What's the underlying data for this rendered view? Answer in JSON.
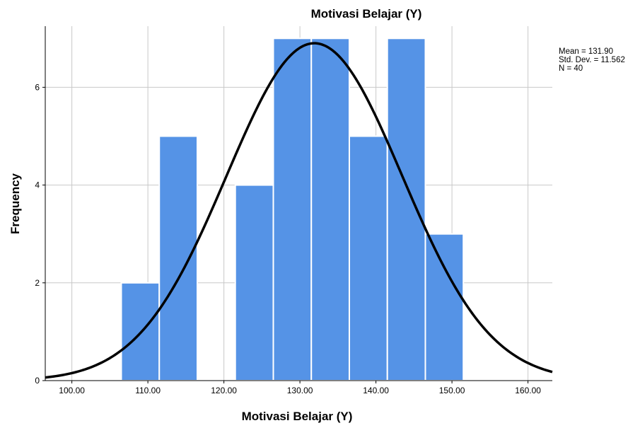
{
  "chart_data": {
    "type": "bar",
    "subtype": "histogram",
    "title": "Motivasi Belajar (Y)",
    "xlabel": "Motivasi Belajar (Y)",
    "ylabel": "Frequency",
    "bins": [
      {
        "start": 106.5,
        "end": 111.5,
        "count": 2
      },
      {
        "start": 111.5,
        "end": 116.5,
        "count": 5
      },
      {
        "start": 116.5,
        "end": 121.5,
        "count": 0
      },
      {
        "start": 121.5,
        "end": 126.5,
        "count": 4
      },
      {
        "start": 126.5,
        "end": 131.5,
        "count": 7
      },
      {
        "start": 131.5,
        "end": 136.5,
        "count": 7
      },
      {
        "start": 136.5,
        "end": 141.5,
        "count": 5
      },
      {
        "start": 141.5,
        "end": 146.5,
        "count": 7
      },
      {
        "start": 146.5,
        "end": 151.5,
        "count": 3
      }
    ],
    "xlim": [
      96.5,
      163.2
    ],
    "ylim": [
      0,
      7.25
    ],
    "xticks": [
      100,
      110,
      120,
      130,
      140,
      150,
      160
    ],
    "xtick_labels": [
      "100.00",
      "110.00",
      "120.00",
      "130.00",
      "140.00",
      "150.00",
      "160.00"
    ],
    "yticks": [
      0,
      2,
      4,
      6
    ],
    "ytick_labels": [
      "0",
      "2",
      "4",
      "6"
    ],
    "grid": true,
    "bar_color": "#5593e6",
    "bar_edge_color": "#ffffff",
    "curve_color": "#000000",
    "normal_curve": {
      "mean": 131.9,
      "std": 11.562,
      "n": 40,
      "bin_width": 5
    },
    "stats": [
      "Mean = 131.90",
      "Std. Dev. = 11.562",
      "N = 40"
    ]
  }
}
